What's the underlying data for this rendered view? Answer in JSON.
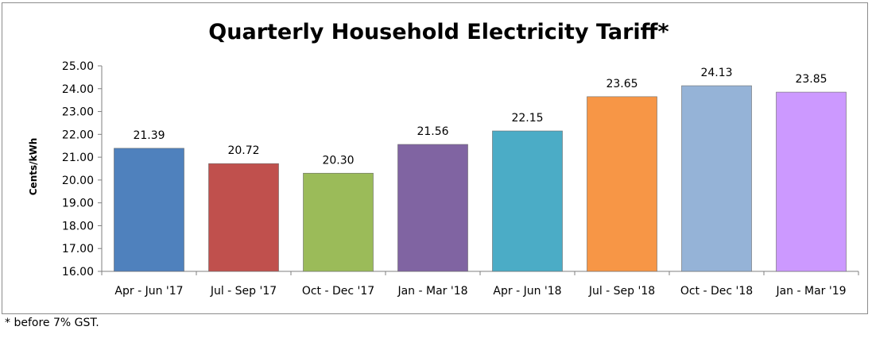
{
  "chart_data": {
    "type": "bar",
    "title": "Quarterly Household Electricity Tariff*",
    "ylabel": "Cents/kWh",
    "xlabel": "",
    "ylim": [
      16,
      25
    ],
    "yticks": [
      "16.00",
      "17.00",
      "18.00",
      "19.00",
      "20.00",
      "21.00",
      "22.00",
      "23.00",
      "24.00",
      "25.00"
    ],
    "categories": [
      "Apr - Jun '17",
      "Jul - Sep '17",
      "Oct - Dec '17",
      "Jan - Mar '18",
      "Apr - Jun '18",
      "Jul - Sep '18",
      "Oct - Dec '18",
      "Jan - Mar '19"
    ],
    "values": [
      21.39,
      20.72,
      20.3,
      21.56,
      22.15,
      23.65,
      24.13,
      23.85
    ],
    "value_labels": [
      "21.39",
      "20.72",
      "20.30",
      "21.56",
      "22.15",
      "23.65",
      "24.13",
      "23.85"
    ],
    "colors": [
      "#4f81bd",
      "#c0504d",
      "#9bbb59",
      "#8064a2",
      "#4bacc6",
      "#f79646",
      "#95b3d7",
      "#cc99ff"
    ],
    "grid": false,
    "legend": "none"
  },
  "footnote": "* before 7% GST."
}
